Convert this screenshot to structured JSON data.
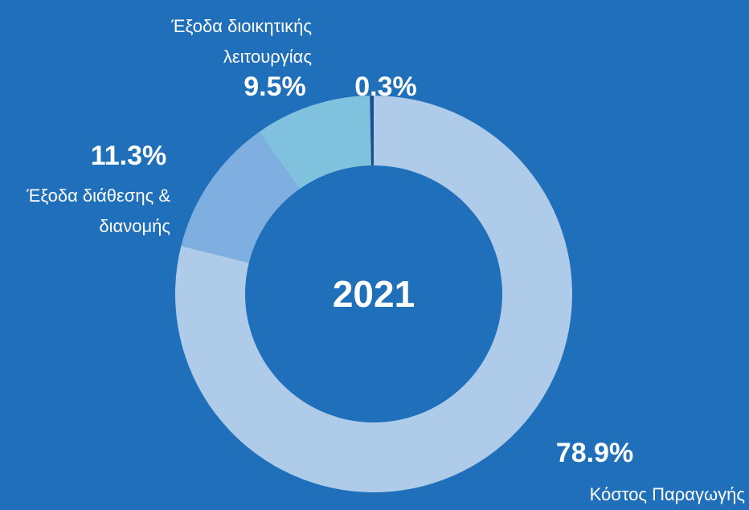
{
  "chart_data": {
    "type": "donut",
    "title": "2021",
    "categories": [
      "Κόστος Παραγωγής",
      "Έξοδα διάθεσης & διανομής",
      "Έξοδα διοικητικής λειτουργίας",
      null
    ],
    "values": [
      78.9,
      11.3,
      9.5,
      0.3
    ],
    "value_labels": [
      "78.9%",
      "11.3%",
      "9.5%",
      "0.3%"
    ],
    "colors": [
      "#aecbea",
      "#7eafe0",
      "#80c1de",
      "#1b4f8f"
    ]
  }
}
